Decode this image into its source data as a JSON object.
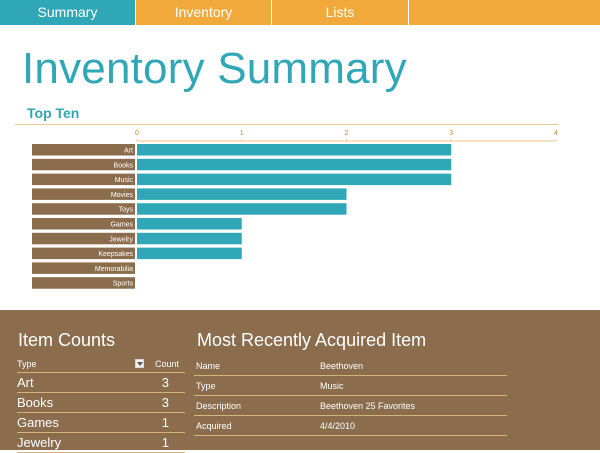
{
  "tabs": [
    "Summary",
    "Inventory",
    "Lists",
    ""
  ],
  "page_title": "Inventory Summary",
  "section_title": "Top Ten",
  "colors": {
    "accent_teal": "#2fa7b6",
    "accent_orange": "#f0a93a",
    "panel_brown": "#8b6d4e",
    "rule_gold": "#d3b57c"
  },
  "chart_data": {
    "type": "bar",
    "orientation": "horizontal",
    "categories": [
      "Art",
      "Books",
      "Music",
      "Movies",
      "Toys",
      "Games",
      "Jewelry",
      "Keepsakes",
      "Memorabilia",
      "Sports"
    ],
    "values": [
      3,
      3,
      3,
      2,
      2,
      1,
      1,
      1,
      0,
      0
    ],
    "xlim": [
      0,
      4
    ],
    "ticks": [
      "0",
      "1",
      "2",
      "3",
      "4"
    ],
    "title": "",
    "xlabel": "",
    "ylabel": "",
    "grid": false
  },
  "item_counts": {
    "title": "Item Counts",
    "header_type": "Type",
    "header_count": "Count",
    "rows": [
      {
        "type": "Art",
        "count": "3"
      },
      {
        "type": "Books",
        "count": "3"
      },
      {
        "type": "Games",
        "count": "1"
      },
      {
        "type": "Jewelry",
        "count": "1"
      }
    ]
  },
  "recent_item": {
    "title": "Most Recently Acquired Item",
    "rows": [
      {
        "label": "Name",
        "value": "Beethoven"
      },
      {
        "label": "Type",
        "value": "Music"
      },
      {
        "label": "Description",
        "value": "Beethoven 25 Favorites"
      },
      {
        "label": "Acquired",
        "value": "4/4/2010"
      }
    ]
  }
}
